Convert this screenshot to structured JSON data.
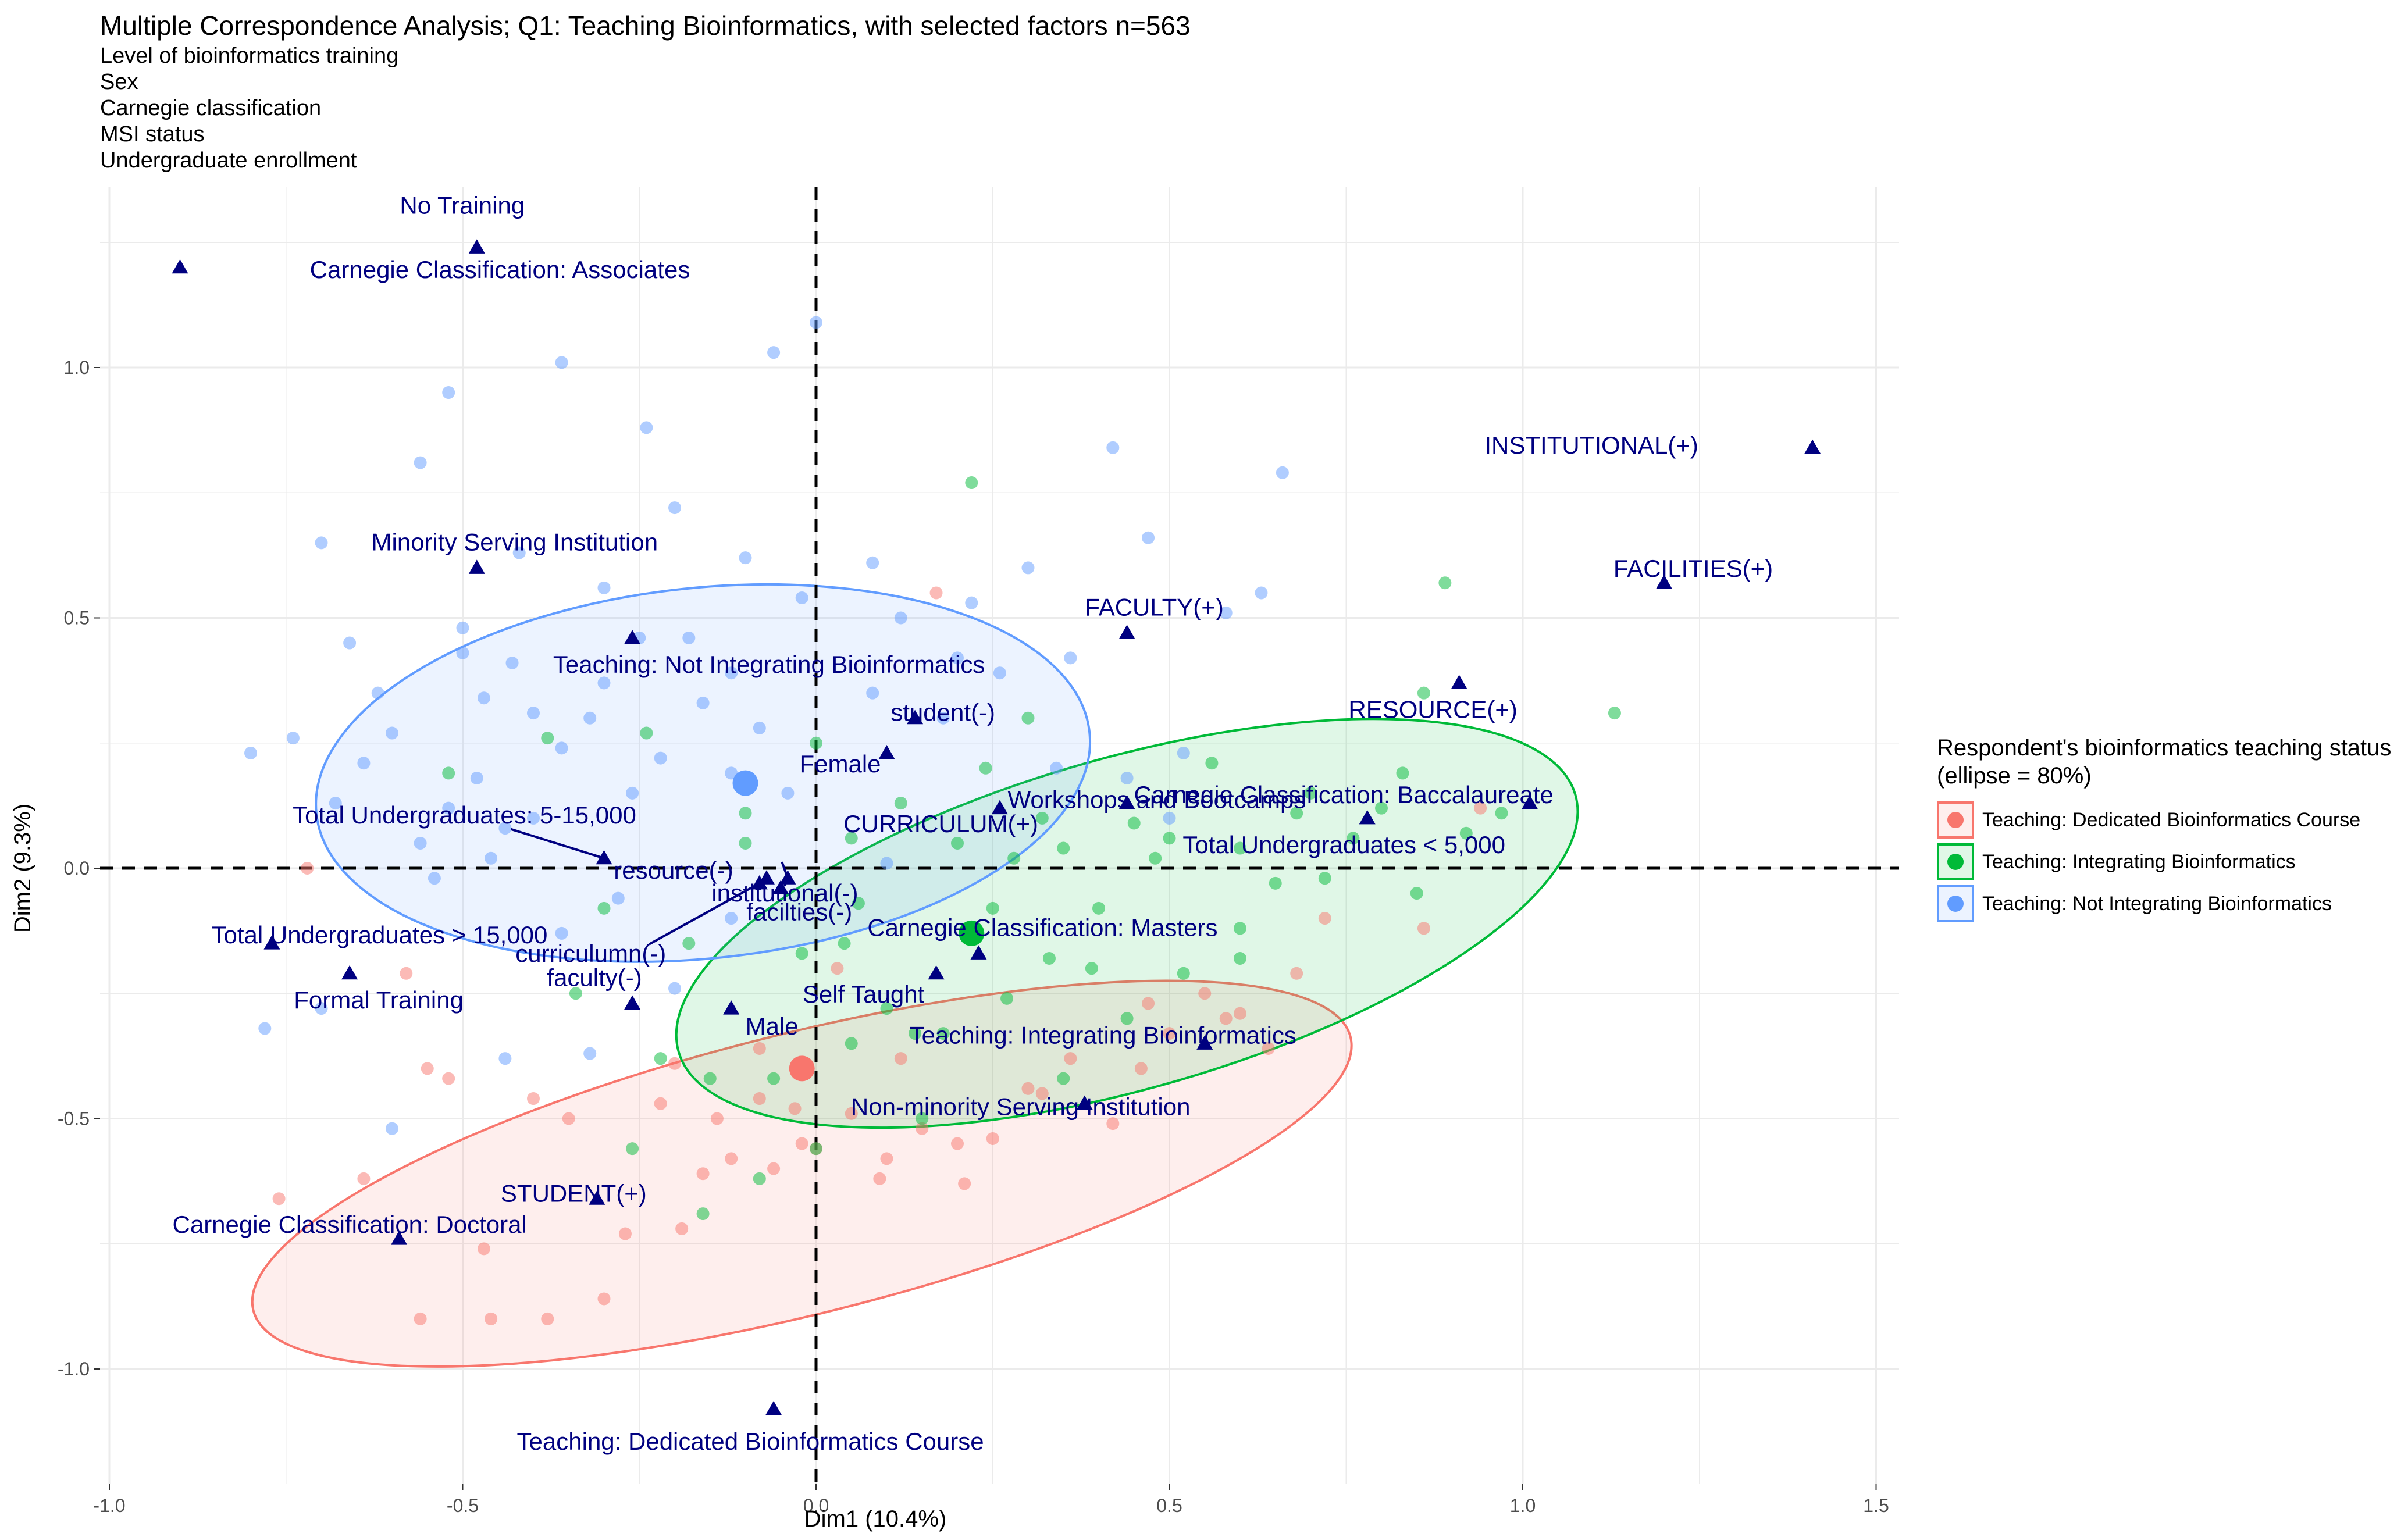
{
  "chart_data": {
    "type": "scatter",
    "title": "Multiple Correspondence Analysis; Q1: Teaching Bioinformatics, with selected factors n=563",
    "subtitle_lines": [
      "Level of bioinformatics training",
      "Sex",
      "Carnegie classification",
      "MSI status",
      "Undergraduate enrollment"
    ],
    "xlabel": "Dim1 (10.4%)",
    "ylabel": "Dim2 (9.3%)",
    "xlim": [
      -1.0,
      1.5
    ],
    "ylim": [
      -1.15,
      1.3
    ],
    "xticks": [
      -1.0,
      -0.5,
      0.0,
      0.5,
      1.0,
      1.5
    ],
    "xtick_labels": [
      "-1.0",
      "-0.5",
      "0.0",
      "0.5",
      "1.0",
      "1.5"
    ],
    "yticks": [
      -1.0,
      -0.5,
      0.0,
      0.5,
      1.0
    ],
    "ytick_labels": [
      "-1.0",
      "-0.5",
      "0.0",
      "0.5",
      "1.0"
    ],
    "grid": true,
    "reference_lines": {
      "x": 0,
      "y": 0,
      "style": "dashed"
    },
    "legend": {
      "title": "Respondent's bioinformatics teaching status (ellipse = 80%)",
      "placement": "right",
      "entries": [
        {
          "label": "Teaching: Dedicated Bioinformatics Course",
          "color": "#F8766D"
        },
        {
          "label": "Teaching: Integrating Bioinformatics",
          "color": "#00BA38"
        },
        {
          "label": "Teaching: Not Integrating Bioinformatics",
          "color": "#619CFF"
        }
      ]
    },
    "groups": [
      {
        "name": "Teaching: Dedicated Bioinformatics Course",
        "color": "#F8766D",
        "centroid": [
          -0.02,
          -0.4
        ],
        "ellipse": {
          "center": [
            -0.02,
            -0.61
          ],
          "rx": 0.8,
          "ry": 0.28,
          "angle_deg": 14
        }
      },
      {
        "name": "Teaching: Integrating Bioinformatics",
        "color": "#00BA38",
        "centroid": [
          0.22,
          -0.13
        ],
        "ellipse": {
          "center": [
            0.44,
            -0.11
          ],
          "rx": 0.66,
          "ry": 0.33,
          "angle_deg": 16
        }
      },
      {
        "name": "Teaching: Not Integrating Bioinformatics",
        "color": "#619CFF",
        "centroid": [
          -0.1,
          0.17
        ],
        "ellipse": {
          "center": [
            -0.16,
            0.19
          ],
          "rx": 0.55,
          "ry": 0.37,
          "angle_deg": 6
        }
      }
    ],
    "category_points": [
      {
        "label": "No Training",
        "x": -0.48,
        "y": 1.24
      },
      {
        "label": "Carnegie Classification: Associates",
        "x": -0.9,
        "y": 1.2
      },
      {
        "label": "INSTITUTIONAL(+)",
        "x": 1.41,
        "y": 0.84
      },
      {
        "label": "FACILITIES(+)",
        "x": 1.2,
        "y": 0.57
      },
      {
        "label": "Minority Serving Institution",
        "x": -0.48,
        "y": 0.6
      },
      {
        "label": "FACULTY(+)",
        "x": 0.44,
        "y": 0.47
      },
      {
        "label": "Teaching: Not Integrating Bioinformatics",
        "x": -0.26,
        "y": 0.46
      },
      {
        "label": "RESOURCE(+)",
        "x": 0.91,
        "y": 0.37
      },
      {
        "label": "student(-)",
        "x": 0.14,
        "y": 0.3
      },
      {
        "label": "Female",
        "x": 0.1,
        "y": 0.23
      },
      {
        "label": "Workshops and Bootcamps",
        "x": 0.26,
        "y": 0.12
      },
      {
        "label": "Carnegie Classification: Baccalaureate",
        "x": 1.01,
        "y": 0.13
      },
      {
        "label": "CURRICULUM(+)",
        "x": 0.44,
        "y": 0.13
      },
      {
        "label": "Total Undergraduates < 5,000",
        "x": 0.78,
        "y": 0.1
      },
      {
        "label": "Total Undergraduates: 5-15,000",
        "x": -0.3,
        "y": 0.02
      },
      {
        "label": "resource(-)",
        "x": -0.07,
        "y": -0.02
      },
      {
        "label": "institutional(-)",
        "x": -0.04,
        "y": -0.02
      },
      {
        "label": "facilties(-)",
        "x": -0.05,
        "y": -0.04
      },
      {
        "label": "curriculumn(-)",
        "x": -0.08,
        "y": -0.03
      },
      {
        "label": "Total Undergraduates > 15,000",
        "x": -0.77,
        "y": -0.15
      },
      {
        "label": "Carnegie Classification: Masters",
        "x": 0.23,
        "y": -0.17
      },
      {
        "label": "Formal Training",
        "x": -0.66,
        "y": -0.21
      },
      {
        "label": "faculty(-)",
        "x": -0.26,
        "y": -0.27
      },
      {
        "label": "Self Taught",
        "x": 0.17,
        "y": -0.21
      },
      {
        "label": "Male",
        "x": -0.12,
        "y": -0.28
      },
      {
        "label": "Teaching: Integrating Bioinformatics",
        "x": 0.55,
        "y": -0.35
      },
      {
        "label": "Non-minority Serving Institution",
        "x": 0.38,
        "y": -0.47
      },
      {
        "label": "STUDENT(+)",
        "x": -0.31,
        "y": -0.66
      },
      {
        "label": "Carnegie Classification: Doctoral",
        "x": -0.59,
        "y": -0.74
      },
      {
        "label": "Teaching: Dedicated Bioinformatics Course",
        "x": -0.06,
        "y": -1.08
      }
    ],
    "individual_points": {
      "Teaching: Dedicated Bioinformatics Course": [
        [
          -0.76,
          -0.66
        ],
        [
          -0.64,
          -0.62
        ],
        [
          -0.56,
          -0.9
        ],
        [
          -0.55,
          -0.4
        ],
        [
          -0.52,
          -0.42
        ],
        [
          -0.47,
          -0.76
        ],
        [
          -0.46,
          -0.9
        ],
        [
          -0.38,
          -0.9
        ],
        [
          -0.35,
          -0.5
        ],
        [
          -0.3,
          -0.86
        ],
        [
          -0.27,
          -0.73
        ],
        [
          -0.22,
          -0.47
        ],
        [
          -0.19,
          -0.72
        ],
        [
          -0.16,
          -0.61
        ],
        [
          -0.14,
          -0.5
        ],
        [
          -0.12,
          -0.58
        ],
        [
          -0.08,
          -0.46
        ],
        [
          -0.06,
          -0.6
        ],
        [
          -0.03,
          -0.48
        ],
        [
          -0.02,
          -0.55
        ],
        [
          0.0,
          -0.56
        ],
        [
          0.05,
          -0.49
        ],
        [
          0.1,
          -0.58
        ],
        [
          0.15,
          -0.52
        ],
        [
          0.12,
          -0.38
        ],
        [
          0.21,
          -0.63
        ],
        [
          0.25,
          -0.54
        ],
        [
          0.32,
          -0.45
        ],
        [
          0.36,
          -0.38
        ],
        [
          0.42,
          -0.51
        ],
        [
          0.46,
          -0.4
        ],
        [
          0.5,
          -0.33
        ],
        [
          0.55,
          -0.25
        ],
        [
          0.6,
          -0.29
        ],
        [
          0.64,
          -0.36
        ],
        [
          0.68,
          -0.21
        ],
        [
          0.72,
          -0.1
        ],
        [
          0.86,
          -0.12
        ],
        [
          0.94,
          0.12
        ],
        [
          0.17,
          0.55
        ],
        [
          -0.72,
          0.0
        ],
        [
          -0.58,
          -0.21
        ],
        [
          0.03,
          -0.2
        ],
        [
          -0.08,
          -0.36
        ],
        [
          0.3,
          -0.44
        ],
        [
          0.47,
          -0.27
        ],
        [
          0.58,
          -0.3
        ],
        [
          -0.4,
          -0.46
        ],
        [
          -0.2,
          -0.39
        ],
        [
          0.09,
          -0.62
        ],
        [
          0.2,
          -0.55
        ]
      ],
      "Teaching: Integrating Bioinformatics": [
        [
          -0.52,
          0.19
        ],
        [
          -0.38,
          0.26
        ],
        [
          -0.24,
          0.27
        ],
        [
          -0.1,
          0.05
        ],
        [
          0.05,
          0.06
        ],
        [
          0.12,
          0.13
        ],
        [
          0.22,
          0.77
        ],
        [
          0.24,
          0.2
        ],
        [
          0.3,
          0.3
        ],
        [
          0.35,
          0.04
        ],
        [
          0.4,
          -0.08
        ],
        [
          0.45,
          0.09
        ],
        [
          0.5,
          0.06
        ],
        [
          0.56,
          0.21
        ],
        [
          0.6,
          -0.12
        ],
        [
          0.65,
          -0.03
        ],
        [
          0.68,
          0.11
        ],
        [
          0.72,
          -0.02
        ],
        [
          0.76,
          0.06
        ],
        [
          0.8,
          0.12
        ],
        [
          0.83,
          0.19
        ],
        [
          0.86,
          0.35
        ],
        [
          0.89,
          0.57
        ],
        [
          0.92,
          0.07
        ],
        [
          0.97,
          0.11
        ],
        [
          1.13,
          0.31
        ],
        [
          0.04,
          -0.15
        ],
        [
          0.1,
          -0.28
        ],
        [
          0.18,
          -0.33
        ],
        [
          0.27,
          -0.26
        ],
        [
          0.33,
          -0.18
        ],
        [
          0.39,
          -0.2
        ],
        [
          0.44,
          -0.3
        ],
        [
          0.52,
          -0.21
        ],
        [
          0.6,
          -0.18
        ],
        [
          -0.06,
          -0.42
        ],
        [
          -0.15,
          -0.42
        ],
        [
          -0.26,
          -0.56
        ],
        [
          -0.16,
          -0.69
        ],
        [
          -0.08,
          -0.62
        ],
        [
          0.0,
          -0.56
        ],
        [
          0.14,
          -0.33
        ],
        [
          0.06,
          -0.07
        ],
        [
          -0.02,
          -0.17
        ],
        [
          -0.18,
          -0.15
        ],
        [
          -0.3,
          -0.08
        ],
        [
          -0.1,
          0.11
        ],
        [
          0.0,
          0.25
        ],
        [
          0.2,
          0.05
        ],
        [
          0.32,
          0.1
        ],
        [
          0.25,
          -0.08
        ],
        [
          0.48,
          0.02
        ],
        [
          0.6,
          0.04
        ],
        [
          0.7,
          0.15
        ],
        [
          0.85,
          -0.05
        ],
        [
          0.15,
          -0.5
        ],
        [
          0.35,
          -0.42
        ],
        [
          0.05,
          -0.35
        ],
        [
          -0.22,
          -0.38
        ],
        [
          -0.34,
          -0.25
        ],
        [
          0.28,
          0.02
        ]
      ],
      "Teaching: Not Integrating Bioinformatics": [
        [
          -0.7,
          0.65
        ],
        [
          -0.62,
          0.35
        ],
        [
          -0.56,
          0.81
        ],
        [
          -0.52,
          0.95
        ],
        [
          -0.5,
          0.43
        ],
        [
          -0.47,
          0.34
        ],
        [
          -0.43,
          0.41
        ],
        [
          -0.36,
          1.01
        ],
        [
          -0.32,
          0.3
        ],
        [
          -0.24,
          0.88
        ],
        [
          -0.18,
          0.46
        ],
        [
          -0.12,
          0.39
        ],
        [
          -0.06,
          1.03
        ],
        [
          -0.02,
          0.54
        ],
        [
          0.0,
          1.09
        ],
        [
          0.08,
          0.61
        ],
        [
          0.12,
          0.5
        ],
        [
          0.18,
          0.3
        ],
        [
          0.22,
          0.53
        ],
        [
          0.26,
          0.39
        ],
        [
          0.3,
          0.6
        ],
        [
          0.36,
          0.42
        ],
        [
          0.42,
          0.84
        ],
        [
          0.47,
          0.66
        ],
        [
          0.52,
          0.23
        ],
        [
          0.58,
          0.51
        ],
        [
          0.63,
          0.55
        ],
        [
          0.66,
          0.79
        ],
        [
          -0.8,
          0.23
        ],
        [
          -0.74,
          0.26
        ],
        [
          -0.68,
          0.13
        ],
        [
          -0.64,
          0.21
        ],
        [
          -0.6,
          0.27
        ],
        [
          -0.56,
          0.05
        ],
        [
          -0.52,
          0.12
        ],
        [
          -0.48,
          0.18
        ],
        [
          -0.44,
          0.08
        ],
        [
          -0.4,
          0.31
        ],
        [
          -0.36,
          0.24
        ],
        [
          -0.3,
          0.37
        ],
        [
          -0.26,
          0.15
        ],
        [
          -0.22,
          0.22
        ],
        [
          -0.16,
          0.33
        ],
        [
          -0.12,
          0.19
        ],
        [
          -0.08,
          0.28
        ],
        [
          -0.04,
          0.15
        ],
        [
          -0.66,
          0.45
        ],
        [
          -0.5,
          0.48
        ],
        [
          -0.42,
          0.63
        ],
        [
          -0.3,
          0.56
        ],
        [
          -0.2,
          0.72
        ],
        [
          -0.1,
          0.62
        ],
        [
          0.2,
          0.42
        ],
        [
          0.34,
          0.2
        ],
        [
          0.44,
          0.18
        ],
        [
          0.5,
          0.1
        ],
        [
          -0.78,
          -0.32
        ],
        [
          -0.7,
          -0.28
        ],
        [
          -0.6,
          -0.52
        ],
        [
          -0.44,
          -0.38
        ],
        [
          -0.32,
          -0.37
        ],
        [
          -0.12,
          -0.1
        ],
        [
          -0.2,
          -0.24
        ],
        [
          -0.28,
          -0.06
        ],
        [
          -0.36,
          -0.13
        ],
        [
          -0.46,
          0.02
        ],
        [
          -0.54,
          -0.02
        ],
        [
          0.1,
          0.01
        ],
        [
          -0.4,
          0.1
        ],
        [
          -0.25,
          0.46
        ],
        [
          0.08,
          0.35
        ]
      ]
    }
  }
}
